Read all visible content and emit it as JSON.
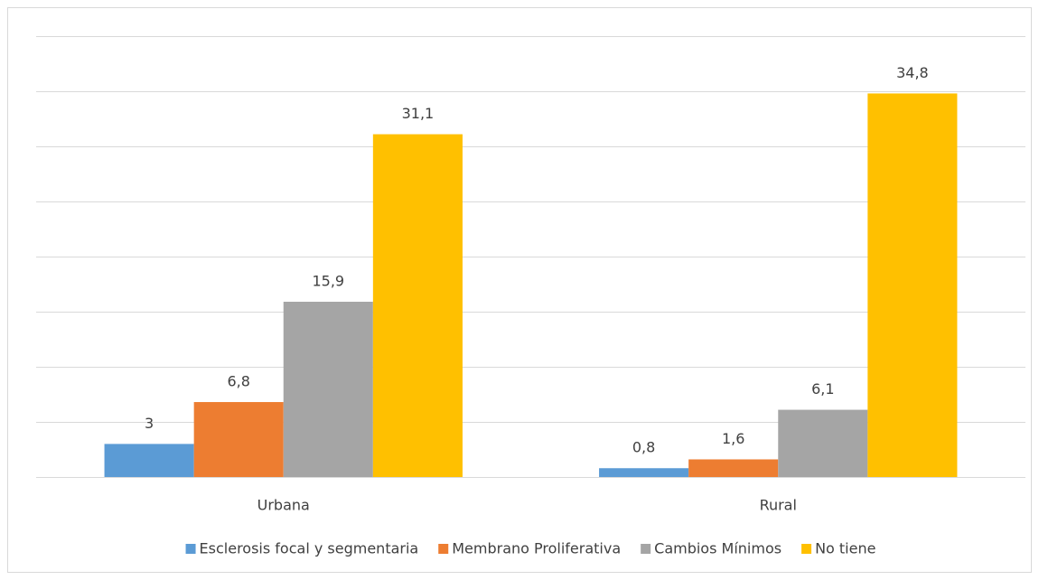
{
  "chart_data": {
    "type": "bar",
    "categories": [
      "Urbana",
      "Rural"
    ],
    "series": [
      {
        "name": "Esclerosis focal y segmentaria",
        "color": "#5b9bd5",
        "values": [
          3,
          0.8
        ],
        "value_labels": [
          "3",
          "0,8"
        ]
      },
      {
        "name": "Membrano Proliferativa",
        "color": "#ed7d31",
        "values": [
          6.8,
          1.6
        ],
        "value_labels": [
          "6,8",
          "1,6"
        ]
      },
      {
        "name": "Cambios Mínimos",
        "color": "#a5a5a5",
        "values": [
          15.9,
          6.1
        ],
        "value_labels": [
          "15,9",
          "6,1"
        ]
      },
      {
        "name": "No tiene",
        "color": "#ffc000",
        "values": [
          31.1,
          34.8
        ],
        "value_labels": [
          "31,1",
          "34,8"
        ]
      }
    ],
    "ylim": [
      0,
      40
    ],
    "yticks": [
      0,
      5,
      10,
      15,
      20,
      25,
      30,
      35,
      40
    ],
    "grid": true,
    "legend": "bottom"
  }
}
